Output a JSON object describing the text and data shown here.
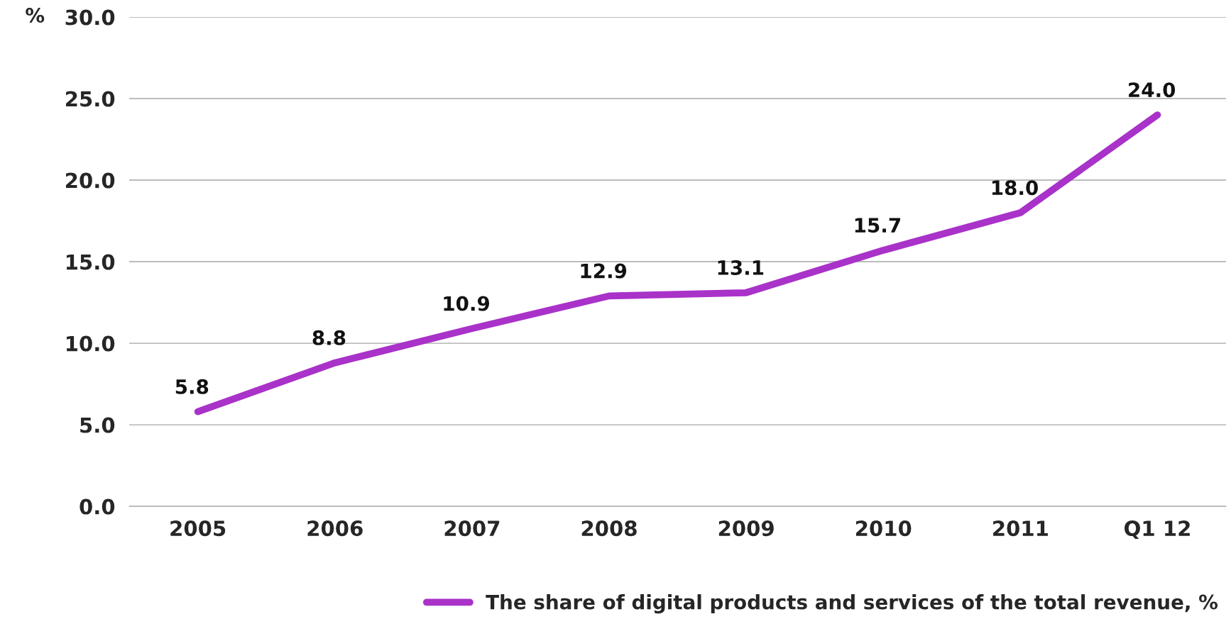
{
  "chart_data": {
    "type": "line",
    "ylabel": "%",
    "categories": [
      "2005",
      "2006",
      "2007",
      "2008",
      "2009",
      "2010",
      "2011",
      "Q1 12"
    ],
    "series": [
      {
        "name": "The share of digital products and services of the total revenue, %",
        "color": "#a932c9",
        "values": [
          5.8,
          8.8,
          10.9,
          12.9,
          13.1,
          15.7,
          18.0,
          24.0
        ]
      }
    ],
    "value_labels": [
      "5.8",
      "8.8",
      "10.9",
      "12.9",
      "13.1",
      "15.7",
      "18.0",
      "24.0"
    ],
    "ylim": [
      0,
      30
    ],
    "yticks": [
      {
        "value": 0,
        "label": "0.0"
      },
      {
        "value": 5,
        "label": "5.0"
      },
      {
        "value": 10,
        "label": "10.0"
      },
      {
        "value": 15,
        "label": "15.0"
      },
      {
        "value": 20,
        "label": "20.0"
      },
      {
        "value": 25,
        "label": "25.0"
      },
      {
        "value": 30,
        "label": "30.0"
      }
    ],
    "grid": "y",
    "legend": "bottom right",
    "marker": "none",
    "line_style": "solid"
  }
}
